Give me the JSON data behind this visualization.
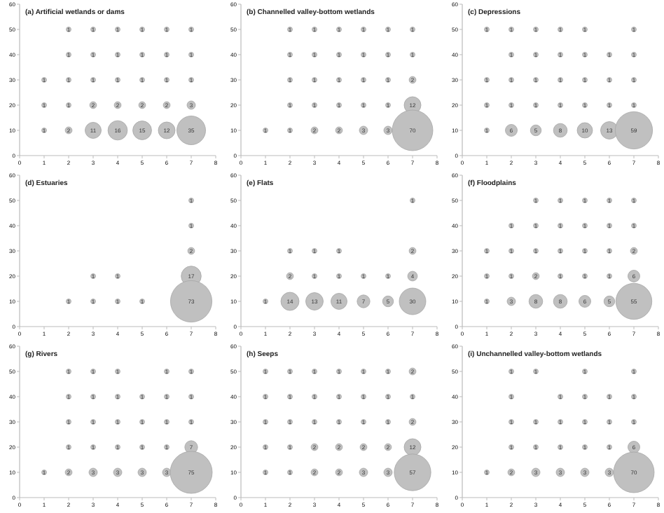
{
  "chart_data": [
    {
      "type": "bubble",
      "title": "(a) Artificial wetlands or dams",
      "color": "#c0c0c0",
      "xlim": [
        0,
        8
      ],
      "xticks": [
        0,
        1,
        2,
        3,
        4,
        5,
        6,
        7,
        8
      ],
      "ylim": [
        0,
        60
      ],
      "yticks": [
        0,
        10,
        20,
        30,
        40,
        50,
        60
      ],
      "x": [
        2,
        3,
        4,
        5,
        6,
        7,
        2,
        3,
        4,
        5,
        6,
        7,
        1,
        2,
        3,
        4,
        5,
        6,
        7,
        1,
        2,
        3,
        4,
        5,
        6,
        7,
        1,
        2,
        3,
        4,
        5,
        6,
        7
      ],
      "values": [
        50,
        50,
        50,
        50,
        50,
        50,
        40,
        40,
        40,
        40,
        40,
        40,
        30,
        30,
        30,
        30,
        30,
        30,
        30,
        20,
        20,
        20,
        20,
        20,
        20,
        20,
        10,
        10,
        10,
        10,
        10,
        10,
        10
      ],
      "sizes": [
        1,
        1,
        1,
        1,
        1,
        1,
        1,
        1,
        1,
        1,
        1,
        1,
        1,
        1,
        1,
        1,
        1,
        1,
        1,
        1,
        1,
        2,
        2,
        2,
        2,
        3,
        1,
        2,
        11,
        16,
        15,
        12,
        35
      ],
      "value_labels": [
        "1",
        "1",
        "1",
        "1",
        "1",
        "1",
        "1",
        "1",
        "1",
        "1",
        "1",
        "1",
        "1",
        "1",
        "1",
        "1",
        "1",
        "1",
        "1",
        "1",
        "1",
        "2",
        "2",
        "2",
        "2",
        "3",
        "1",
        "2",
        "11",
        "16",
        "15",
        "12",
        "35"
      ]
    },
    {
      "type": "bubble",
      "title": "(b) Channelled valley-bottom wetlands",
      "color": "#c0c0c0",
      "xlim": [
        0,
        8
      ],
      "xticks": [
        0,
        1,
        2,
        3,
        4,
        5,
        6,
        7,
        8
      ],
      "ylim": [
        0,
        60
      ],
      "yticks": [
        0,
        10,
        20,
        30,
        40,
        50,
        60
      ],
      "x": [
        2,
        3,
        4,
        5,
        6,
        7,
        2,
        3,
        4,
        5,
        6,
        7,
        2,
        3,
        4,
        5,
        6,
        7,
        2,
        3,
        4,
        5,
        6,
        7,
        1,
        2,
        3,
        4,
        5,
        6,
        7
      ],
      "values": [
        50,
        50,
        50,
        50,
        50,
        50,
        40,
        40,
        40,
        40,
        40,
        40,
        30,
        30,
        30,
        30,
        30,
        30,
        20,
        20,
        20,
        20,
        20,
        20,
        10,
        10,
        10,
        10,
        10,
        10,
        10
      ],
      "sizes": [
        1,
        1,
        1,
        1,
        1,
        1,
        1,
        1,
        1,
        1,
        1,
        1,
        1,
        1,
        1,
        1,
        1,
        2,
        1,
        1,
        1,
        1,
        1,
        12,
        1,
        1,
        2,
        2,
        3,
        3,
        70
      ],
      "value_labels": [
        "1",
        "1",
        "1",
        "1",
        "1",
        "1",
        "1",
        "1",
        "1",
        "1",
        "1",
        "1",
        "1",
        "1",
        "1",
        "1",
        "1",
        "2",
        "1",
        "1",
        "1",
        "1",
        "1",
        "12",
        "1",
        "1",
        "2",
        "2",
        "3",
        "3",
        "70"
      ]
    },
    {
      "type": "bubble",
      "title": "(c) Depressions",
      "color": "#c0c0c0",
      "xlim": [
        0,
        8
      ],
      "xticks": [
        0,
        1,
        2,
        3,
        4,
        5,
        6,
        7,
        8
      ],
      "ylim": [
        0,
        60
      ],
      "yticks": [
        0,
        10,
        20,
        30,
        40,
        50,
        60
      ],
      "x": [
        1,
        2,
        3,
        4,
        5,
        7,
        2,
        3,
        4,
        5,
        6,
        7,
        1,
        2,
        3,
        4,
        5,
        6,
        7,
        1,
        2,
        3,
        4,
        5,
        6,
        7,
        1,
        2,
        3,
        4,
        5,
        6,
        7
      ],
      "values": [
        50,
        50,
        50,
        50,
        50,
        50,
        40,
        40,
        40,
        40,
        40,
        40,
        30,
        30,
        30,
        30,
        30,
        30,
        30,
        20,
        20,
        20,
        20,
        20,
        20,
        20,
        10,
        10,
        10,
        10,
        10,
        10,
        10
      ],
      "sizes": [
        1,
        1,
        1,
        1,
        1,
        1,
        1,
        1,
        1,
        1,
        1,
        1,
        1,
        1,
        1,
        1,
        1,
        1,
        1,
        1,
        1,
        1,
        1,
        1,
        1,
        1,
        1,
        6,
        5,
        8,
        10,
        13,
        59
      ],
      "value_labels": [
        "1",
        "1",
        "1",
        "1",
        "1",
        "1",
        "1",
        "1",
        "1",
        "1",
        "1",
        "1",
        "1",
        "1",
        "1",
        "1",
        "1",
        "1",
        "1",
        "1",
        "1",
        "1",
        "1",
        "1",
        "1",
        "1",
        "1",
        "6",
        "5",
        "8",
        "10",
        "13",
        "59"
      ]
    },
    {
      "type": "bubble",
      "title": "(d) Estuaries",
      "color": "#c0c0c0",
      "xlim": [
        0,
        8
      ],
      "xticks": [
        0,
        1,
        2,
        3,
        4,
        5,
        6,
        7,
        8
      ],
      "ylim": [
        0,
        60
      ],
      "yticks": [
        0,
        10,
        20,
        30,
        40,
        50,
        60
      ],
      "x": [
        7,
        7,
        7,
        3,
        4,
        7,
        2,
        3,
        4,
        5,
        7
      ],
      "values": [
        50,
        40,
        30,
        20,
        20,
        20,
        10,
        10,
        10,
        10,
        10
      ],
      "sizes": [
        1,
        1,
        2,
        1,
        1,
        17,
        1,
        1,
        1,
        1,
        73
      ],
      "value_labels": [
        "1",
        "1",
        "2",
        "1",
        "1",
        "17",
        "1",
        "1",
        "1",
        "1",
        "73"
      ]
    },
    {
      "type": "bubble",
      "title": "(e) Flats",
      "color": "#c0c0c0",
      "xlim": [
        0,
        8
      ],
      "xticks": [
        0,
        1,
        2,
        3,
        4,
        5,
        6,
        7,
        8
      ],
      "ylim": [
        0,
        60
      ],
      "yticks": [
        0,
        10,
        20,
        30,
        40,
        50,
        60
      ],
      "x": [
        7,
        2,
        3,
        4,
        7,
        2,
        3,
        4,
        5,
        6,
        7,
        1,
        2,
        3,
        4,
        5,
        6,
        7
      ],
      "values": [
        50,
        30,
        30,
        30,
        30,
        20,
        20,
        20,
        20,
        20,
        20,
        10,
        10,
        10,
        10,
        10,
        10,
        10
      ],
      "sizes": [
        1,
        1,
        1,
        1,
        2,
        2,
        1,
        1,
        1,
        1,
        4,
        1,
        14,
        13,
        11,
        7,
        5,
        30
      ],
      "value_labels": [
        "1",
        "1",
        "1",
        "1",
        "2",
        "2",
        "1",
        "1",
        "1",
        "1",
        "4",
        "1",
        "14",
        "13",
        "11",
        "7",
        "5",
        "30"
      ]
    },
    {
      "type": "bubble",
      "title": "(f) Floodplains",
      "color": "#c0c0c0",
      "xlim": [
        0,
        8
      ],
      "xticks": [
        0,
        1,
        2,
        3,
        4,
        5,
        6,
        7,
        8
      ],
      "ylim": [
        0,
        60
      ],
      "yticks": [
        0,
        10,
        20,
        30,
        40,
        50,
        60
      ],
      "x": [
        3,
        4,
        5,
        6,
        7,
        2,
        3,
        4,
        5,
        6,
        7,
        1,
        2,
        3,
        4,
        5,
        6,
        7,
        1,
        2,
        3,
        4,
        5,
        6,
        7,
        1,
        2,
        3,
        4,
        5,
        6,
        7
      ],
      "values": [
        50,
        50,
        50,
        50,
        50,
        40,
        40,
        40,
        40,
        40,
        40,
        30,
        30,
        30,
        30,
        30,
        30,
        30,
        20,
        20,
        20,
        20,
        20,
        20,
        20,
        10,
        10,
        10,
        10,
        10,
        10,
        10
      ],
      "sizes": [
        1,
        1,
        1,
        1,
        1,
        1,
        1,
        1,
        1,
        1,
        1,
        1,
        1,
        1,
        1,
        1,
        1,
        2,
        1,
        1,
        2,
        1,
        1,
        1,
        6,
        1,
        3,
        8,
        8,
        6,
        5,
        55
      ],
      "value_labels": [
        "1",
        "1",
        "1",
        "1",
        "1",
        "1",
        "1",
        "1",
        "1",
        "1",
        "1",
        "1",
        "1",
        "1",
        "1",
        "1",
        "1",
        "2",
        "1",
        "1",
        "2",
        "1",
        "1",
        "1",
        "6",
        "1",
        "3",
        "8",
        "8",
        "6",
        "5",
        "55"
      ]
    },
    {
      "type": "bubble",
      "title": "(g) Rivers",
      "color": "#c0c0c0",
      "xlim": [
        0,
        8
      ],
      "xticks": [
        0,
        1,
        2,
        3,
        4,
        5,
        6,
        7,
        8
      ],
      "ylim": [
        0,
        60
      ],
      "yticks": [
        0,
        10,
        20,
        30,
        40,
        50,
        60
      ],
      "x": [
        2,
        3,
        4,
        6,
        7,
        2,
        3,
        4,
        5,
        6,
        7,
        2,
        3,
        4,
        5,
        6,
        7,
        2,
        3,
        4,
        5,
        6,
        7,
        1,
        2,
        3,
        4,
        5,
        6,
        7
      ],
      "values": [
        50,
        50,
        50,
        50,
        50,
        40,
        40,
        40,
        40,
        40,
        40,
        30,
        30,
        30,
        30,
        30,
        30,
        20,
        20,
        20,
        20,
        20,
        20,
        10,
        10,
        10,
        10,
        10,
        10,
        10
      ],
      "sizes": [
        1,
        1,
        1,
        1,
        1,
        1,
        1,
        1,
        1,
        1,
        1,
        1,
        1,
        1,
        1,
        1,
        1,
        1,
        1,
        1,
        1,
        1,
        7,
        1,
        2,
        3,
        3,
        3,
        3,
        75
      ],
      "value_labels": [
        "1",
        "1",
        "1",
        "1",
        "1",
        "1",
        "1",
        "1",
        "1",
        "1",
        "1",
        "1",
        "1",
        "1",
        "1",
        "1",
        "1",
        "1",
        "1",
        "1",
        "1",
        "1",
        "7",
        "1",
        "2",
        "3",
        "3",
        "3",
        "3",
        "75"
      ]
    },
    {
      "type": "bubble",
      "title": "(h) Seeps",
      "color": "#c0c0c0",
      "xlim": [
        0,
        8
      ],
      "xticks": [
        0,
        1,
        2,
        3,
        4,
        5,
        6,
        7,
        8
      ],
      "ylim": [
        0,
        60
      ],
      "yticks": [
        0,
        10,
        20,
        30,
        40,
        50,
        60
      ],
      "x": [
        1,
        2,
        3,
        4,
        5,
        6,
        7,
        1,
        2,
        3,
        4,
        5,
        6,
        7,
        1,
        2,
        3,
        4,
        5,
        6,
        7,
        1,
        2,
        3,
        4,
        5,
        6,
        7,
        1,
        2,
        3,
        4,
        5,
        6,
        7
      ],
      "values": [
        50,
        50,
        50,
        50,
        50,
        50,
        50,
        40,
        40,
        40,
        40,
        40,
        40,
        40,
        30,
        30,
        30,
        30,
        30,
        30,
        30,
        20,
        20,
        20,
        20,
        20,
        20,
        20,
        10,
        10,
        10,
        10,
        10,
        10,
        10
      ],
      "sizes": [
        1,
        1,
        1,
        1,
        1,
        1,
        2,
        1,
        1,
        1,
        1,
        1,
        1,
        1,
        1,
        1,
        1,
        1,
        1,
        1,
        2,
        1,
        1,
        2,
        2,
        2,
        2,
        12,
        1,
        1,
        2,
        2,
        3,
        3,
        57
      ],
      "value_labels": [
        "1",
        "1",
        "1",
        "1",
        "1",
        "1",
        "2",
        "1",
        "1",
        "1",
        "1",
        "1",
        "1",
        "1",
        "1",
        "1",
        "1",
        "1",
        "1",
        "1",
        "2",
        "1",
        "1",
        "2",
        "2",
        "2",
        "2",
        "12",
        "1",
        "1",
        "2",
        "2",
        "3",
        "3",
        "57"
      ]
    },
    {
      "type": "bubble",
      "title": "(i) Unchannelled valley-bottom wetlands",
      "color": "#c0c0c0",
      "xlim": [
        0,
        8
      ],
      "xticks": [
        0,
        1,
        2,
        3,
        4,
        5,
        6,
        7,
        8
      ],
      "ylim": [
        0,
        60
      ],
      "yticks": [
        0,
        10,
        20,
        30,
        40,
        50,
        60
      ],
      "x": [
        2,
        3,
        5,
        7,
        2,
        4,
        5,
        6,
        7,
        2,
        3,
        4,
        5,
        6,
        7,
        2,
        3,
        4,
        5,
        6,
        7,
        1,
        2,
        3,
        4,
        5,
        6,
        7
      ],
      "values": [
        50,
        50,
        50,
        50,
        40,
        40,
        40,
        40,
        40,
        30,
        30,
        30,
        30,
        30,
        30,
        20,
        20,
        20,
        20,
        20,
        20,
        10,
        10,
        10,
        10,
        10,
        10,
        10
      ],
      "sizes": [
        1,
        1,
        1,
        1,
        1,
        1,
        1,
        1,
        1,
        1,
        1,
        1,
        1,
        1,
        1,
        1,
        1,
        1,
        1,
        1,
        6,
        1,
        2,
        3,
        3,
        3,
        3,
        70
      ],
      "value_labels": [
        "1",
        "1",
        "1",
        "1",
        "1",
        "1",
        "1",
        "1",
        "1",
        "1",
        "1",
        "1",
        "1",
        "1",
        "1",
        "1",
        "1",
        "1",
        "1",
        "1",
        "6",
        "1",
        "2",
        "3",
        "3",
        "3",
        "3",
        "70"
      ]
    }
  ]
}
